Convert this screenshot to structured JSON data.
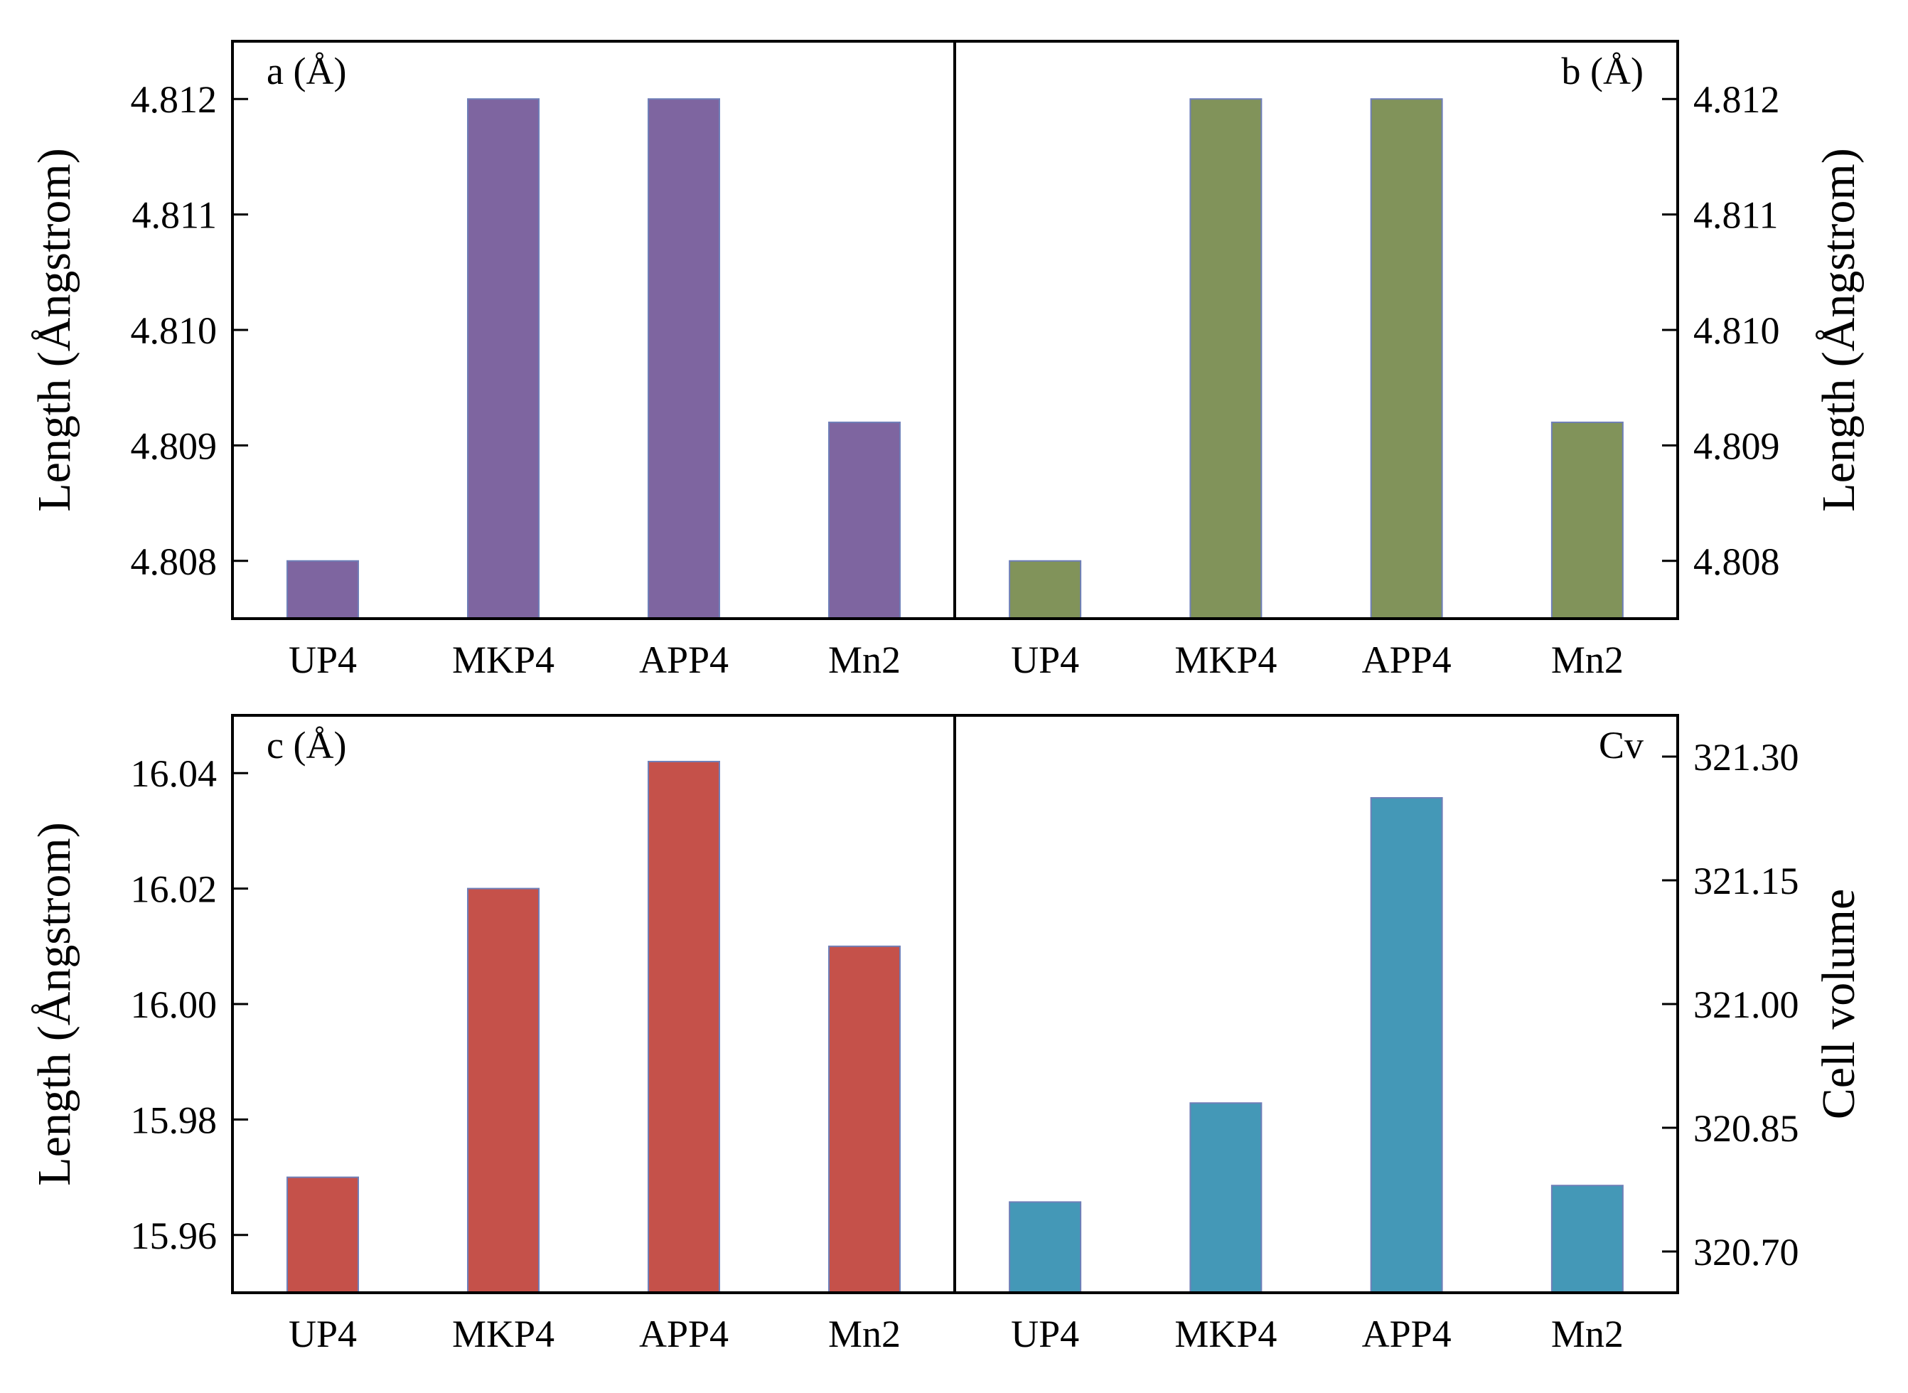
{
  "figure": {
    "bar_stroke": "#6f7fb8",
    "frame_color": "#000000"
  },
  "chart_data": [
    {
      "id": "a",
      "type": "bar",
      "title": "a (Å)",
      "categories": [
        "UP4",
        "MKP4",
        "APP4",
        "Mn2"
      ],
      "values": [
        4.808,
        4.812,
        4.812,
        4.8092
      ],
      "ylabel": "Length (Ångstrom)",
      "yaxis_side": "left",
      "ylim": [
        4.8075,
        4.8125
      ],
      "yticks": [
        4.808,
        4.809,
        4.81,
        4.811,
        4.812
      ],
      "tick_labels": [
        "4.808",
        "4.809",
        "4.810",
        "4.811",
        "4.812"
      ],
      "color": "#7e65a0",
      "label_position": "top-left"
    },
    {
      "id": "b",
      "type": "bar",
      "title": "b (Å)",
      "categories": [
        "UP4",
        "MKP4",
        "APP4",
        "Mn2"
      ],
      "values": [
        4.808,
        4.812,
        4.812,
        4.8092
      ],
      "ylabel": "Length (Ångstrom)",
      "yaxis_side": "right",
      "ylim": [
        4.8075,
        4.8125
      ],
      "yticks": [
        4.808,
        4.809,
        4.81,
        4.811,
        4.812
      ],
      "tick_labels": [
        "4.808",
        "4.809",
        "4.810",
        "4.811",
        "4.812"
      ],
      "color": "#81935a",
      "label_position": "top-right"
    },
    {
      "id": "c",
      "type": "bar",
      "title": "c (Å)",
      "categories": [
        "UP4",
        "MKP4",
        "APP4",
        "Mn2"
      ],
      "values": [
        15.97,
        16.02,
        16.042,
        16.01
      ],
      "ylabel": "Length (Ångstrom)",
      "yaxis_side": "left",
      "ylim": [
        15.95,
        16.05
      ],
      "yticks": [
        15.96,
        15.98,
        16.0,
        16.02,
        16.04
      ],
      "tick_labels": [
        "15.96",
        "15.98",
        "16.00",
        "16.02",
        "16.04"
      ],
      "color": "#c5514a",
      "label_position": "top-left"
    },
    {
      "id": "cv",
      "type": "bar",
      "title": "Cv",
      "categories": [
        "UP4",
        "MKP4",
        "APP4",
        "Mn2"
      ],
      "values": [
        320.76,
        320.88,
        321.25,
        320.78
      ],
      "ylabel": "Cell volume",
      "yaxis_side": "right",
      "ylim": [
        320.65,
        321.35
      ],
      "yticks": [
        320.7,
        320.85,
        321.0,
        321.15,
        321.3
      ],
      "tick_labels": [
        "320.70",
        "320.85",
        "321.00",
        "321.15",
        "321.30"
      ],
      "color": "#4498b7",
      "label_position": "top-right"
    }
  ]
}
